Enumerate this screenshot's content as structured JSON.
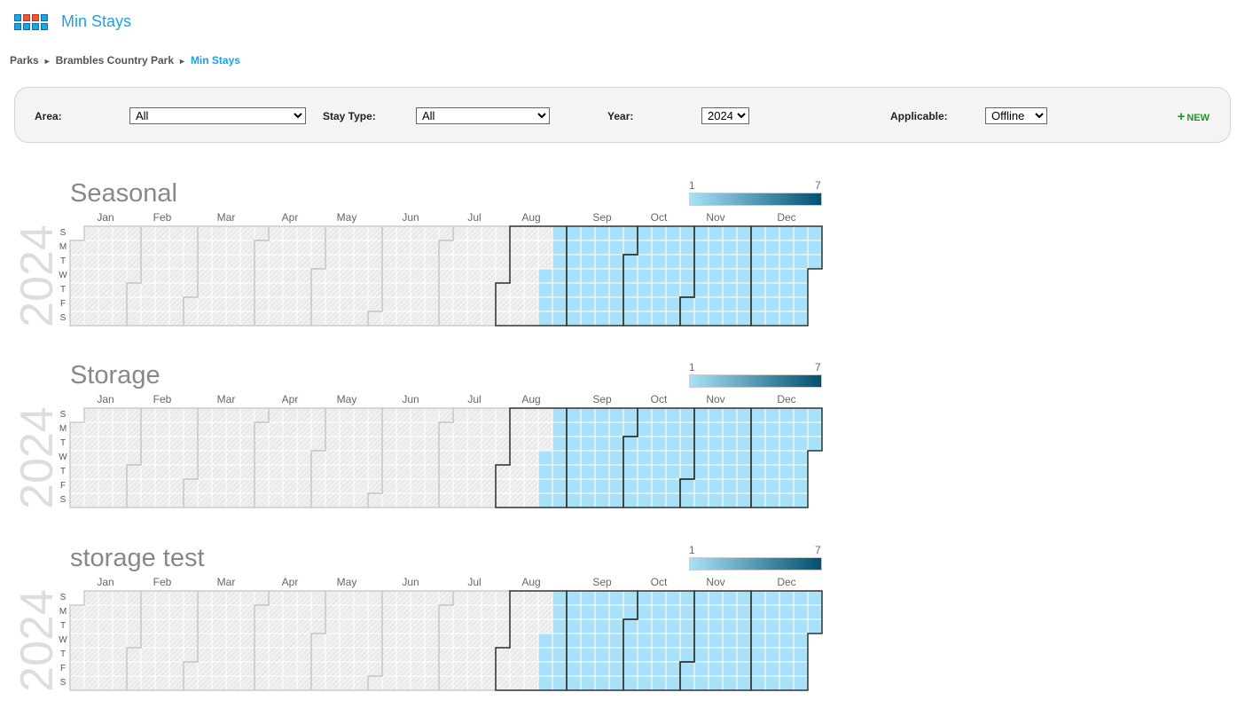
{
  "header": {
    "title": "Min Stays",
    "logo_icon": "grid-apps-icon"
  },
  "breadcrumb": [
    {
      "label": "Parks"
    },
    {
      "label": "Brambles Country Park"
    },
    {
      "label": "Min Stays",
      "current": true
    }
  ],
  "filters": {
    "area": {
      "label": "Area:",
      "value": "All"
    },
    "stay_type": {
      "label": "Stay Type:",
      "value": "All"
    },
    "year": {
      "label": "Year:",
      "value": "2024"
    },
    "applicable": {
      "label": "Applicable:",
      "value": "Offline"
    },
    "new_button": {
      "label": "NEW",
      "icon": "plus-icon",
      "color": "#1a9a1a"
    }
  },
  "chart_data": [
    {
      "type": "heatmap",
      "title": "Seasonal",
      "year": "2024",
      "legend": {
        "min": "1",
        "max": "7",
        "color_min": "#a8e1f8",
        "color_max": "#02506f"
      },
      "day_labels": [
        "S",
        "M",
        "T",
        "W",
        "T",
        "F",
        "S"
      ],
      "month_labels": [
        "Jan",
        "Feb",
        "Mar",
        "Apr",
        "May",
        "Jun",
        "Jul",
        "Aug",
        "Sep",
        "Oct",
        "Nov",
        "Dec"
      ],
      "values": [
        {
          "from": "2024-08-21",
          "to": "2024-12-31",
          "value": 1
        }
      ],
      "highlighted_months": [
        "Aug",
        "Sep",
        "Oct",
        "Nov",
        "Dec"
      ]
    },
    {
      "type": "heatmap",
      "title": "Storage",
      "year": "2024",
      "legend": {
        "min": "1",
        "max": "7",
        "color_min": "#a8e1f8",
        "color_max": "#02506f"
      },
      "day_labels": [
        "S",
        "M",
        "T",
        "W",
        "T",
        "F",
        "S"
      ],
      "month_labels": [
        "Jan",
        "Feb",
        "Mar",
        "Apr",
        "May",
        "Jun",
        "Jul",
        "Aug",
        "Sep",
        "Oct",
        "Nov",
        "Dec"
      ],
      "values": [
        {
          "from": "2024-08-21",
          "to": "2024-12-31",
          "value": 1
        }
      ],
      "highlighted_months": [
        "Aug",
        "Sep",
        "Oct",
        "Nov",
        "Dec"
      ]
    },
    {
      "type": "heatmap",
      "title": "storage test",
      "year": "2024",
      "legend": {
        "min": "1",
        "max": "7",
        "color_min": "#a8e1f8",
        "color_max": "#02506f"
      },
      "day_labels": [
        "S",
        "M",
        "T",
        "W",
        "T",
        "F",
        "S"
      ],
      "month_labels": [
        "Jan",
        "Feb",
        "Mar",
        "Apr",
        "May",
        "Jun",
        "Jul",
        "Aug",
        "Sep",
        "Oct",
        "Nov",
        "Dec"
      ],
      "values": [
        {
          "from": "2024-08-21",
          "to": "2024-12-31",
          "value": 1
        }
      ],
      "highlighted_months": [
        "Aug",
        "Sep",
        "Oct",
        "Nov",
        "Dec"
      ]
    }
  ]
}
